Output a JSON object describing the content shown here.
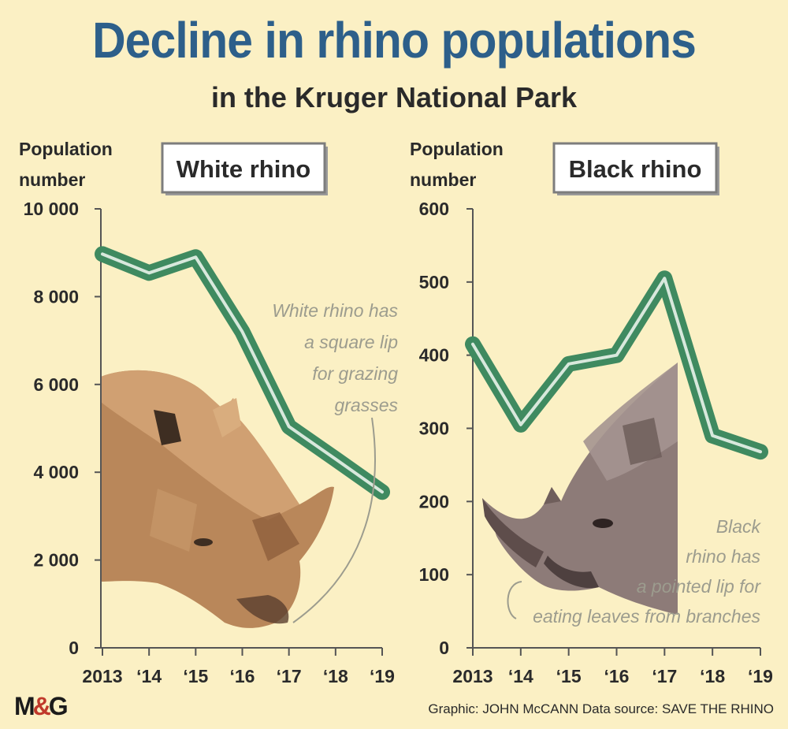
{
  "header": {
    "title": "Decline in rhino populations",
    "subtitle": "in the Kruger National Park"
  },
  "colors": {
    "line": "#3f8a60",
    "line_highlight": "#d8e8dc",
    "title": "#2d5f8a",
    "background": "#fbf0c4",
    "annotation": "#9c9c8e"
  },
  "chart_data": [
    {
      "type": "line",
      "panel_label": "White rhino",
      "ylabel_line1": "Population",
      "ylabel_line2": "number",
      "categories": [
        "2013",
        "‘14",
        "‘15",
        "‘16",
        "‘17",
        "‘18",
        "‘19"
      ],
      "values": [
        8970,
        8540,
        8900,
        7200,
        5040,
        4300,
        3550
      ],
      "ylim": [
        0,
        10000
      ],
      "yticks": [
        0,
        2000,
        4000,
        6000,
        8000,
        10000
      ],
      "ytick_labels": [
        "0",
        "2 000",
        "4 000",
        "6 000",
        "8 000",
        "10 000"
      ],
      "annotation": [
        "White rhino has",
        "a square lip",
        "for grazing",
        "grasses"
      ]
    },
    {
      "type": "line",
      "panel_label": "Black rhino",
      "ylabel_line1": "Population",
      "ylabel_line2": "number",
      "categories": [
        "2013",
        "‘14",
        "‘15",
        "‘16",
        "‘17",
        "‘18",
        "‘19"
      ],
      "values": [
        415,
        305,
        388,
        400,
        505,
        290,
        268
      ],
      "ylim": [
        0,
        600
      ],
      "yticks": [
        0,
        100,
        200,
        300,
        400,
        500,
        600
      ],
      "ytick_labels": [
        "0",
        "100",
        "200",
        "300",
        "400",
        "500",
        "600"
      ],
      "annotation": [
        "Black",
        "rhino has",
        "a pointed lip for",
        "eating leaves from branches"
      ]
    }
  ],
  "footer": {
    "logo_left": "M",
    "logo_amp": "&",
    "logo_right": "G",
    "credit": "Graphic: JOHN McCANN  Data source: SAVE THE RHINO"
  }
}
